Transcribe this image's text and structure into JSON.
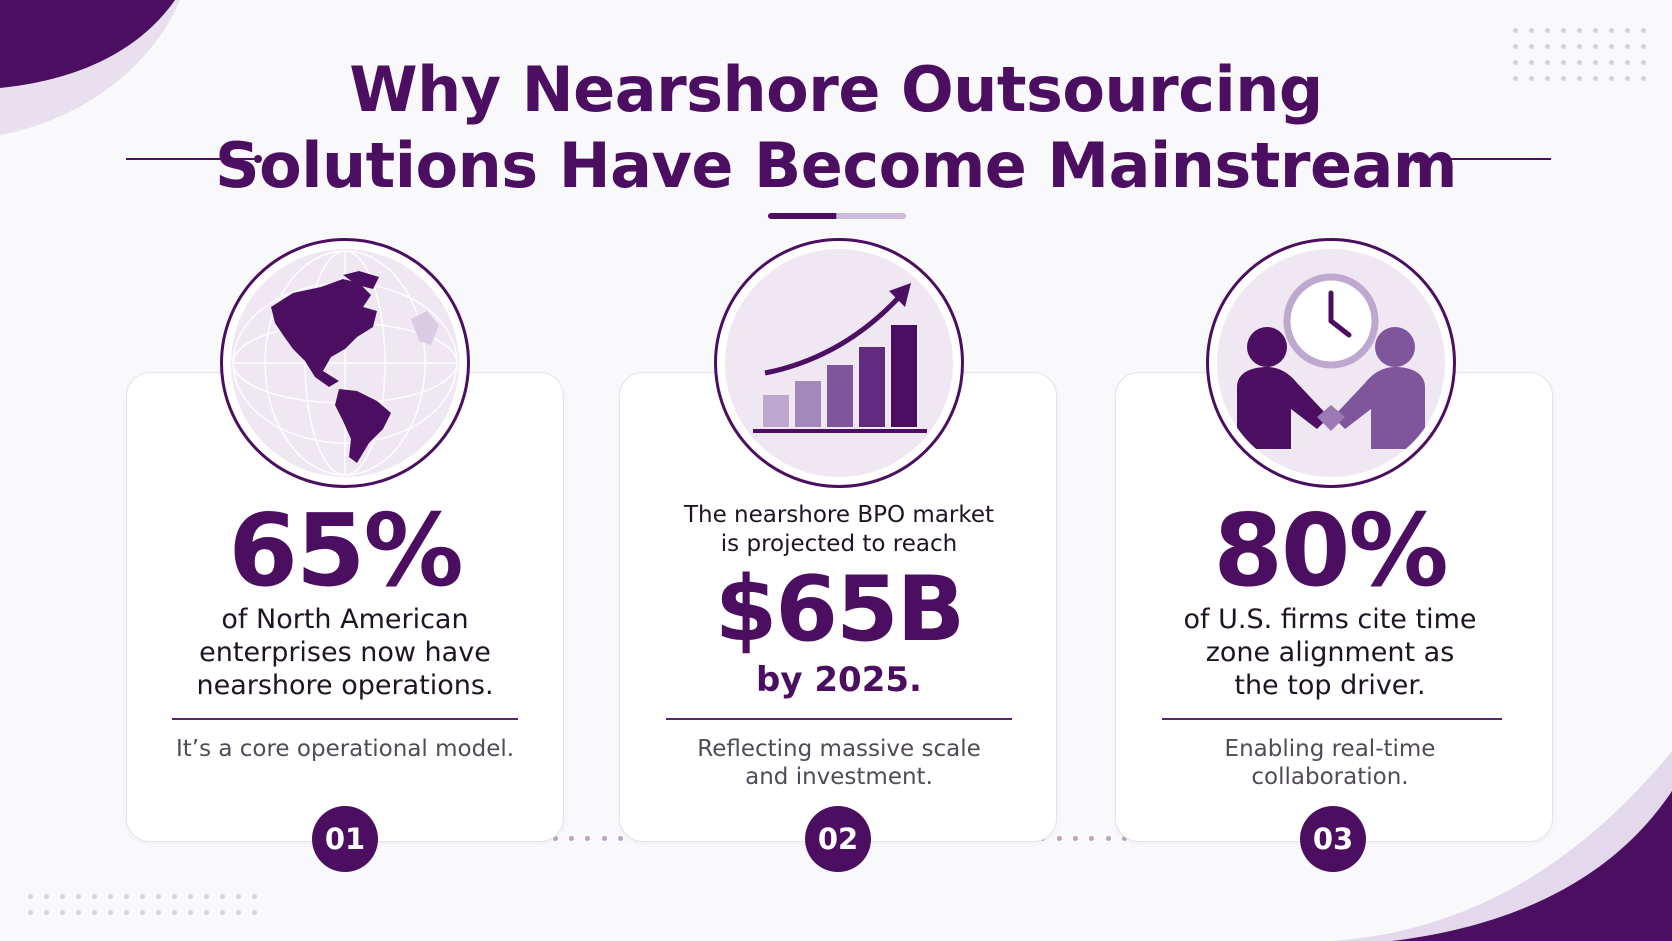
{
  "title": {
    "line1": "Why Nearshore Outsourcing",
    "line2": "Solutions Have Become Mainstream"
  },
  "colors": {
    "primary": "#4b0e60",
    "accent_light": "#cdb9db",
    "icon_bg": "#efe8f3",
    "background": "#f9f8fb"
  },
  "cards": [
    {
      "icon": "globe-americas-icon",
      "stat": "65%",
      "desc_lines": [
        "of North American",
        "enterprises now have",
        "nearshore operations."
      ],
      "note_lines": [
        "It’s a core operational model."
      ],
      "number": "01"
    },
    {
      "icon": "growth-bar-chart-icon",
      "lead_lines": [
        "The nearshore BPO market",
        "is projected to reach"
      ],
      "stat": "$65B",
      "year_line": "by 2025.",
      "note_lines": [
        "Reflecting massive scale",
        "and investment."
      ],
      "number": "02"
    },
    {
      "icon": "handshake-clock-icon",
      "stat": "80%",
      "desc_lines": [
        "of U.S. firms cite time",
        "zone alignment as",
        "the top driver."
      ],
      "note_lines": [
        "Enabling real-time",
        "collaboration."
      ],
      "number": "03"
    }
  ]
}
